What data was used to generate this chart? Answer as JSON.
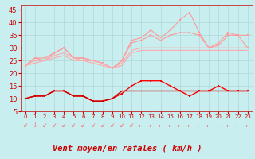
{
  "title": "",
  "xlabel": "Vent moyen/en rafales ( km/h )",
  "background_color": "#c8eef0",
  "grid_color": "#b0d8d8",
  "hours": [
    0,
    1,
    2,
    3,
    4,
    5,
    6,
    7,
    8,
    9,
    10,
    11,
    12,
    13,
    14,
    15,
    16,
    17,
    18,
    19,
    20,
    21,
    22,
    23
  ],
  "line_gust1_color": "#ff9999",
  "line_gust2_color": "#ff9999",
  "line_trend1_color": "#ffaaaa",
  "line_trend2_color": "#ffaaaa",
  "line_wind_main_color": "#ff0000",
  "line_wind_flat_color": "#cc0000",
  "ylim": [
    5,
    47
  ],
  "yticks": [
    5,
    10,
    15,
    20,
    25,
    30,
    35,
    40,
    45
  ],
  "series_gusts_1": [
    23,
    26,
    26,
    28,
    30,
    26,
    26,
    25,
    24,
    22,
    25,
    33,
    34,
    37,
    34,
    37,
    41,
    44,
    36,
    30,
    32,
    36,
    35,
    35
  ],
  "series_gusts_2": [
    23,
    26,
    25,
    28,
    30,
    26,
    26,
    25,
    24,
    22,
    25,
    32,
    33,
    35,
    33,
    35,
    36,
    36,
    35,
    30,
    31,
    35,
    35,
    30
  ],
  "series_trend1": [
    23,
    25,
    25,
    27,
    28,
    26,
    25,
    25,
    24,
    22,
    24,
    29,
    30,
    30,
    30,
    30,
    30,
    30,
    30,
    30,
    30,
    30,
    30,
    30
  ],
  "series_trend2": [
    23,
    24,
    25,
    26,
    27,
    25,
    25,
    24,
    23,
    22,
    23,
    28,
    29,
    29,
    29,
    29,
    29,
    29,
    29,
    29,
    29,
    29,
    29,
    29
  ],
  "series_wind_main": [
    10,
    11,
    11,
    13,
    13,
    11,
    11,
    9,
    9,
    10,
    12,
    15,
    17,
    17,
    17,
    15,
    13,
    11,
    13,
    13,
    15,
    13,
    13,
    13
  ],
  "series_wind_flat": [
    10,
    11,
    11,
    13,
    13,
    11,
    11,
    9,
    9,
    10,
    13,
    13,
    13,
    13,
    13,
    13,
    13,
    13,
    13,
    13,
    13,
    13,
    13,
    13
  ],
  "arrow_symbols": [
    "↙",
    "↓",
    "↙",
    "↙",
    "↙",
    "↙",
    "↙",
    "↙",
    "↙",
    "↙",
    "↙",
    "↙",
    "←",
    "←",
    "←",
    "←",
    "←",
    "←",
    "←",
    "←",
    "←",
    "←",
    "←",
    "←"
  ],
  "arrow_color": "#ff6666",
  "xlabel_color": "#cc0000",
  "xlabel_fontsize": 7.5,
  "tick_color": "#cc0000",
  "tick_fontsize": 6,
  "spine_color": "#cc0000"
}
